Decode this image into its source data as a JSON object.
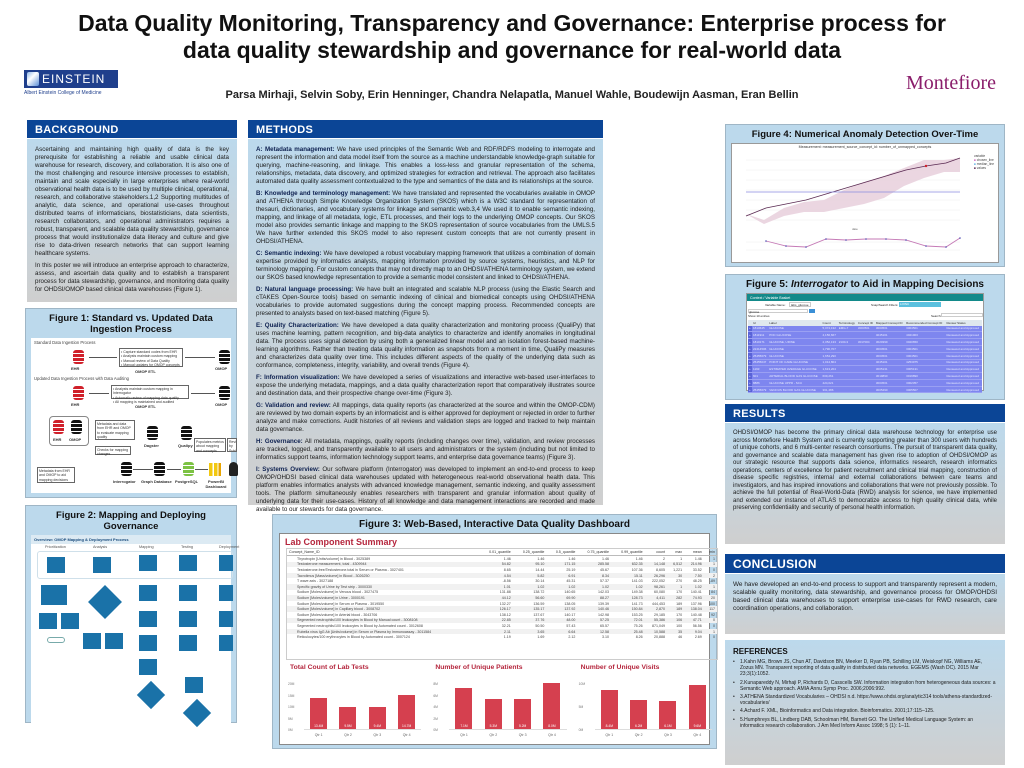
{
  "header": {
    "title_line1": "Data Quality Monitoring, Transparency and Governance: Enterprise process for",
    "title_line2": "data quality stewardship and governance for real-world data",
    "authors": "Parsa Mirhaji, Selvin Soby, Erin Henninger, Chandra Nelapatla, Manuel Wahle, Boudewijn Aasman, Eran Bellin",
    "logo_left": "EINSTEIN",
    "logo_left_sub": "Albert Einstein College of Medicine",
    "logo_right": "Montefiore"
  },
  "background": {
    "heading": "BACKGROUND",
    "p1": "Ascertaining and maintaining high quality of data is the key prerequisite for establishing a reliable and usable clinical data warehouse for research, discovery, and collaboration. It is also one of the most challenging and resource intensive processes to establish, maintain and scale especially in large enterprises where real-world observational health data is to be used by multiple clinical, operational, research, and collaborative stakeholders.1,2 Supporting multitudes of analytic, data science, and operational use-cases throughout distributed teams of informaticians, biostatisticians, data scientists, research collaborators, and operational administrators requires a robust, transparent, and scalable data quality stewardship, governance process that would institutionalize data literacy and culture and give rise to data-driven research networks that can support learning healthcare systems.",
    "p2": "In this poster we will introduce an enterprise approach to characterize, assess, and ascertain data quality and to establish a transparent process for data stewardship, governance, and monitoring data quality for OHDSI/OMOP based clinical data warehouses (Figure 1)."
  },
  "methods": {
    "heading": "METHODS",
    "items": [
      {
        "label": "A: Metadata management:",
        "text": " We have used principles of the Semantic Web and RDF/RDFS modeling to interrogate and represent the information and data model itself from the source as a machine understandable knowledge-graph suitable for querying, machine-reasoning, and linkage. This enables a loss-less and granular representation of the schema, relationships, metadata, data discovery, and optimized strategies for extraction and retrieval. The approach also facilitates automated data quality assessment contextualized to the type and semantics of the data and its relationships at the source."
      },
      {
        "label": "B: Knowledge and terminology management:",
        "text": " We have translated and represented the vocabularies available in OMOP and ATHENA through Simple Knowledge Organization System (SKOS) which is a W3C standard for representation of thesauri, dictionaries, and vocabulary systems for linkage and semantic web.3,4 We used it to enable semantic indexing, mapping, and linkage of all metadata, logic, ETL processes, and their logs to the underlying OMOP concepts. Our SKOS model also provides semantic linkage and mapping to the SKOS representation of source vocabularies from the UMLS.5 We have further extended this SKOS model to also represent custom concepts that are not currently present in OHDSI/ATHENA."
      },
      {
        "label": "C: Semantic indexing:",
        "text": " We have developed a robust vocabulary mapping framework that utilizes a combination of domain expertise provided by informatics analysts, mapping information provided by source systems, heuristics, and NLP for terminology mapping. For custom concepts that may not directly map to an OHDSI/ATHENA terminology system, we extend our SKOS based knowledge representation to provide a semantic model consistent and linked to OHDSI/ATHENA."
      },
      {
        "label": "D: Natural language processing:",
        "text": " We have built an integrated and scalable NLP process (using the Elastic Search and cTAKES Open-Source tools) based on semantic indexing of clinical and biomedical concepts using OHDSI/ATHENA vocabularies to provide automated suggestions during the concept mapping process. Recommended concepts are presented to analysts based on text-based matching (Figure 5)."
      },
      {
        "label": "E: Quality Characterization:",
        "text": " We have developed a data quality characterization and monitoring process (QualiPy) that uses machine learning, pattern recognition, and big-data analytics to characterize and identify anomalies in longitudinal data. The process uses signal detection by using both a generalized linear model and an isolation forest-based machine-learning algorithms. Rather than treating data quality information as snapshots from a moment in time, QualiPy measures and characterizes data quality over time. This includes different aspects of the quality of the underlying data such as conformance, completeness, integrity, variability, and overall trends (Figure 4)."
      },
      {
        "label": "F: Information visualization:",
        "text": " We have developed a series of visualizations and interactive web-based user-interfaces to expose the underlying metadata, mappings, and a data quality characterization report that comparatively illustrates source and destination data, and their prospective change over-time (Figure 3)."
      },
      {
        "label": "G: Validation and review:",
        "text": " All mappings, data quality reports (as characterized at the source and within the OMOP-CDM) are reviewed by two domain experts by an informaticist and is either approved for deployment or rejected in order to further analyze and make corrections. Audit histories of all reviews and validation steps are logged and tracked to help maintain data governance."
      },
      {
        "label": "H: Governance:",
        "text": " All metadata, mappings, quality reports (including changes over time), validation, and review processes are tracked, logged, and transparently available to all users and administrators or the system (including but not limited to informatics support teams, information technology support teams, and enterprise data governance teams) (Figure 3)."
      },
      {
        "label": "I: Systems Overview:",
        "text": " Our software platform (Interrogator) was developed to implement an end-to-end process to keep OMOP/OHDSI based clinical data warehouses updated with heterogeneous real-world observational health data. This platform enables informatics analysts with advanced knowledge management, semantic indexing, and quality assessment tools. The platform simultaneously enables researchers with transparent and granular information about quality of underlying data for their use-cases. History of all knowledge and data management interactions are recorded and made available to our stewards for data governance."
      }
    ]
  },
  "fig1": {
    "title": "Figure 1: Standard vs. Updated Data Ingestion Process",
    "standard_label": "Standard Data Ingestion Process",
    "updated_label": "Updated Data Ingestion Process with Data Auditing",
    "ehr": "EHR",
    "omop": "OMOP",
    "omop_etl": "OMOP ETL",
    "std_box": "• Capture standard codes from EHR\n• Analysts maintain custom mapping\n• Manual review of Data Quality\n• Manual updates for OMOP concepts",
    "upd_box": "• Analysts maintain custom mapping in Interrogator\n• Automatic review of mapping data quality\n• All mapping is maintained and audited",
    "metadata_box": "Metadata and data from EHR and OMOP to evaluate mapping quality",
    "checks_box": "Checks for mapping changes",
    "populates_box": "Populates metrics about mapping and concepts",
    "reviewed_box": "Reviewed by Subject Matter Expert",
    "metadata_ehr_box": "Metadata from EHR and OMOP to aid mapping decisions",
    "nodes": [
      "Interrogator",
      "Graph Database",
      "PostgreSQL",
      "PowerBI Dashboard",
      "Dagster",
      "Qualipy"
    ]
  },
  "fig2": {
    "title": "Figure 2: Mapping and Deploying Governance",
    "header": "Overview: OMOP Mapping & Deployment Process",
    "lanes": [
      "Prioritization",
      "Analysis",
      "Mapping",
      "Testing",
      "Deployment"
    ]
  },
  "fig3": {
    "title": "Figure 3: Web-Based, Interactive Data Quality Dashboard",
    "dashboard_title": "Lab Component Summary",
    "columns": [
      "Concept_Name_ID",
      "0.01_quantile",
      "0.25_quantile",
      "0.5_quantile",
      "0.75_quantile",
      "0.99_quantile",
      "count",
      "max",
      "mean",
      "min"
    ],
    "rows": [
      [
        "Thyrotropin [Units/volume] in Blood - 3025389",
        "1.46",
        "1.46",
        "1.46",
        "1.46",
        "1.46",
        "2",
        "1",
        "1.46",
        "1"
      ],
      [
        "Testosterone measurement, total - 4309944",
        "54.82",
        "95.10",
        "171.15",
        "285.58",
        "632.35",
        "14,148",
        "6,512",
        "214.96",
        "1"
      ],
      [
        "Testosterone.free/Testosterone.total in Serum or Plasma - 3027401",
        "8.65",
        "14.44",
        "25.19",
        "45.67",
        "107.36",
        "8,605",
        "1,221",
        "33.52",
        "0"
      ],
      [
        "Tacrolimus [Mass/volume] in Blood - 3026250",
        "4.54",
        "5.82",
        "6.91",
        "8.34",
        "15.11",
        "26,296",
        "30",
        "7.50",
        "2"
      ],
      [
        "T wave axis - 3027188",
        "-8.56",
        "30.14",
        "45.31",
        "57.37",
        "141.03",
        "222,052",
        "270",
        "48.25",
        "-89"
      ],
      [
        "Specific gravity of Urine by Test strip - 3000330",
        "1.01",
        "1.02",
        "1.02",
        "1.02",
        "1.02",
        "98,261",
        "1",
        "1.02",
        "1"
      ],
      [
        "Sodium [Moles/volume] in Venous blood - 3027475",
        "131.88",
        "138.72",
        "140.65",
        "142.03",
        "149.38",
        "60,080",
        "170",
        "140.41",
        "84"
      ],
      [
        "Sodium [Moles/volume] in Urine - 3000191",
        "44.12",
        "56.60",
        "69.90",
        "88.27",
        "128.73",
        "4,411",
        "282",
        "74.93",
        "20"
      ],
      [
        "Sodium [Moles/volume] in Serum or Plasma - 3019550",
        "132.27",
        "136.59",
        "138.05",
        "139.39",
        "141.73",
        "444,453",
        "189",
        "137.96",
        "100"
      ],
      [
        "Sodium [Moles/volume] in Capillary blood - 3008702",
        "126.17",
        "135.17",
        "137.92",
        "140.46",
        "150.84",
        "2,870",
        "189",
        "138.04",
        "117"
      ],
      [
        "Sodium [Moles/volume] in Arterial blood - 3043706",
        "138.12",
        "137.67",
        "140.17",
        "142.98",
        "153.25",
        "29,185",
        "170",
        "140.48",
        "92"
      ],
      [
        "Segmented neutrophils/100 leukocytes in Blood by Manual count - 3008108",
        "22.85",
        "37.76",
        "48.00",
        "57.25",
        "72.01",
        "55,386",
        "106",
        "47.71",
        "0"
      ],
      [
        "Segmented neutrophils/100 leukocytes in Blood by Automated count - 3012608",
        "32.21",
        "50.50",
        "57.43",
        "65.57",
        "75.26",
        "871,049",
        "100",
        "56.56",
        "0"
      ],
      [
        "Rubella virus IgG Ab [Units/volume] in Serum or Plasma by Immunoassay - 3011584",
        "2.11",
        "3.65",
        "6.64",
        "12.58",
        "25.48",
        "10,588",
        "35",
        "9.04",
        "1"
      ],
      [
        "Reticulocytes/100 erythrocytes in Blood by Automated count - 3007124",
        "1.19",
        "1.69",
        "2.12",
        "3.10",
        "8.26",
        "20,888",
        "46",
        "2.69",
        "0"
      ]
    ]
  },
  "fig3_charts": {
    "chart_data": [
      {
        "type": "bar",
        "title": "Total Count of Lab Tests",
        "xlabel": "Quarter",
        "ylabel": "Overall Count",
        "categories": [
          "Qtr 1",
          "Qtr 2",
          "Qtr 3",
          "Qtr 4"
        ],
        "values": [
          13.4,
          9.5,
          9.4,
          14.7
        ],
        "labels": [
          "13.4M",
          "9.5M",
          "9.4M",
          "14.7M"
        ],
        "yticks": [
          "0M",
          "5M",
          "10M",
          "15M",
          "20M"
        ],
        "ylim": [
          0,
          20
        ]
      },
      {
        "type": "bar",
        "title": "Number of Unique Patients",
        "xlabel": "Quarter",
        "ylabel": "Patient count",
        "categories": [
          "Qtr 1",
          "Qtr 2",
          "Qtr 3",
          "Qtr 4"
        ],
        "values": [
          7.1,
          5.3,
          5.2,
          8.0
        ],
        "labels": [
          "7.1M",
          "5.3M",
          "5.2M",
          "8.0M"
        ],
        "yticks": [
          "0M",
          "2M",
          "4M",
          "6M",
          "8M"
        ],
        "ylim": [
          0,
          8
        ]
      },
      {
        "type": "bar",
        "title": "Number of Unique Visits",
        "xlabel": "Quarter",
        "ylabel": "Visit count",
        "categories": [
          "Qtr 1",
          "Qtr 2",
          "Qtr 3",
          "Qtr 4"
        ],
        "values": [
          8.4,
          6.2,
          6.1,
          9.6
        ],
        "labels": [
          "8.4M",
          "6.2M",
          "6.1M",
          "9.6M"
        ],
        "yticks": [
          "0M",
          "5M",
          "10M"
        ],
        "ylim": [
          0,
          10
        ]
      }
    ]
  },
  "fig4": {
    "title": "Figure 4: Numerical Anomaly Detection Over-Time",
    "subtitle": "Measurement: measurement_source_concept_id: number_of_unmapped_concepts",
    "legend_title": "variable",
    "legend": [
      "chosen_line",
      "median_line",
      "values"
    ],
    "xlabel": "date",
    "chart_data": {
      "type": "line",
      "series": [
        {
          "name": "values",
          "values": [
            0.0,
            0.17,
            0.27,
            0.35,
            0.48,
            0.6,
            0.71,
            0.83,
            0.95,
            1.04,
            1.1,
            1.24
          ]
        },
        {
          "name": "median_line",
          "values": [
            0.62,
            0.62,
            0.62,
            0.62,
            0.62,
            0.62,
            0.62,
            0.62,
            0.62,
            0.62,
            0.62,
            0.62
          ]
        }
      ],
      "lower_panel": [
        0.6,
        0.45,
        0.4,
        0.72,
        0.68,
        0.74,
        0.75,
        0.7,
        0.45,
        0.4,
        0.8
      ]
    }
  },
  "fig5": {
    "title_prefix": "Figure 5: ",
    "title_em": "Interrogator",
    "title_suffix": " to Aid in Mapping Decisions",
    "header": "Context / Variable Basket",
    "variable_name_label": "Variable Name:",
    "variable_name_value": "labs_glucose",
    "filter_label": "Snap/Search Filters:",
    "filter_value": "LOINC",
    "search_value": "glucose",
    "show_entries": "Show 10 entries",
    "search_label": "Search:",
    "columns": [
      "Id",
      "Label",
      "Count",
      "Terminology",
      "Concept ID",
      "Mapped Concept ID",
      "Recommended Concept ID",
      "Review Status"
    ],
    "rows": [
      [
        "1810645",
        "GLUCOSE",
        "5,374,132",
        "EMG-7",
        "3004501",
        "3004501",
        "3004501",
        "Reviewed and Approved"
      ],
      [
        "1811911",
        "POC GLUCOSE",
        "4,156,667",
        "",
        "",
        "4045101",
        "4021903",
        "Reviewed and Approved"
      ],
      [
        "1810171",
        "GLUCOSE, URINE",
        "2,352,133",
        "2100-3",
        "3017004",
        "3020399",
        "3020650",
        "Reviewed and Approved"
      ],
      [
        "22414506",
        "GLUCOSE",
        "1,790,707",
        "",
        "",
        "3004501",
        "3004501",
        "Reviewed and Approved"
      ],
      [
        "25455679",
        "GLUCOSE",
        "1,654,290",
        "",
        "",
        "3004501",
        "3004501",
        "Reviewed and Approved"
      ],
      [
        "25455047",
        "POINT OF CARE GLUCOSE",
        "1,014,804",
        "",
        "",
        "4045101",
        "4253975",
        "Reviewed and Approved"
      ],
      [
        "1193",
        "ESTIMATED AVERAGE GLUCOSE",
        "1,613,204",
        "",
        "",
        "3005131",
        "3005131",
        "Reviewed and Approved"
      ],
      [
        "601",
        "ARTERIAL BLOOD GAS GLUCOSE",
        "609,261",
        "",
        "",
        "3019890",
        "3019890",
        "Reviewed and Approved"
      ],
      [
        "8886",
        "GLUCOSE UPPR - SCU",
        "424,021",
        "",
        "",
        "3004501",
        "3002357",
        "Reviewed and Approved"
      ],
      [
        "25455679",
        "VENOUS BLOOD GAS GLUCOSE",
        "361,486",
        "",
        "",
        "3005490",
        "3005507",
        "Reviewed and Approved"
      ]
    ]
  },
  "results": {
    "heading": "RESULTS",
    "text": "OHDSI/OMOP has become the primary clinical data warehouse technology for enterprise use across Montefiore Health System and is currently supporting greater than 300 users with hundreds of unique cohorts, and 6 multi-center research consortiums. The pursuit of transparent data quality, and governance and scalable data management has given rise to adoption of OHDSI/OMOP as our strategic resource that supports data science, informatics research, research informatics operations, centers of excellence for patient recruitment and clinical trial mapping, construction of disease specific registries, internal and external collaborations between care teams and investigators, and has inspired innovations and collaborations that were not previously possible. To achieve the full potential of Real-World-Data (RWD) analysis for science, we have implemented and extended our instance of ATLAS to democratize access to high quality clinical data, while preserving confidentiality and security of personal health information."
  },
  "conclusion": {
    "heading": "CONCLUSION",
    "text": "We have developed an end-to-end process to support and transparently represent a modern, scalable quality monitoring, data stewardship, and governance process for OMOP/OHDSI based clinical data warehouses to support enterprise use-cases for RWD research, care coordination operations, and collaboration."
  },
  "references": {
    "heading": "REFERENCES",
    "items": [
      "1.Kahn MG, Brown JS, Chun AT, Davidson BN, Meeker D, Ryan PB, Schilling LM, Weiskopf NG, Williams AE, Zozus MN. Transparent reporting of data quality in distributed data networks. EGEMS (Wash DC). 2015 Mar 23;3(1):1052.",
      "2.Kunapareddy N, Mirhaji P, Richards D, Casscells SW. Information integration from heterogeneous data sources: a Semantic Web approach. AMIA Annu Symp Proc. 2006;2006:992.",
      "3.ATHENA Standardized Vocabularies – OHDSI n.d. https://www.ohdsi.org/analytic314 tools/athena-standardized-vocabularies/",
      "4.Achard F. XML, Bioinformatics and Data integration. Bioinformatics. 2001;17:115–125.",
      "5.Humphreys BL, Lindberg DAB, Schoolman HM, Barnett GO. The Unified Medical Language System: an informatics research collaboration. J Am Med Inform Assoc 1998; 5 (1): 1–11."
    ]
  },
  "colors": {
    "section_header": "#0b4596",
    "panel_bg": "#bcd9ec",
    "dashboard_accent": "#b5263d",
    "bar_color": "#d5404f",
    "montefiore": "#8a1d6b",
    "einstein": "#1f3f8c"
  }
}
